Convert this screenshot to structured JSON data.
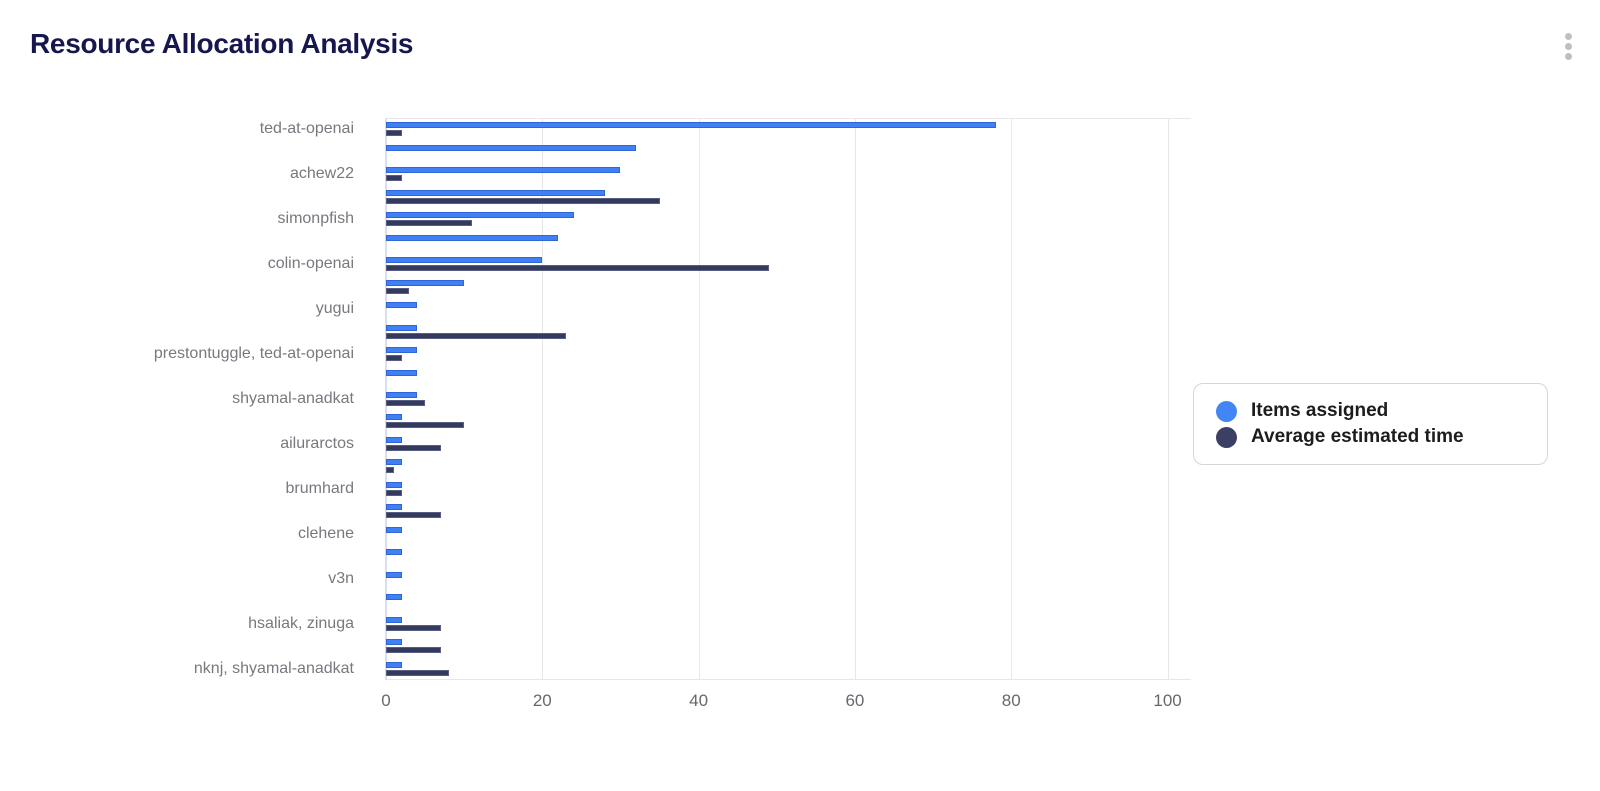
{
  "header": {
    "title": "Resource Allocation Analysis",
    "menu_icon": "kebab-vertical"
  },
  "colors": {
    "assigned_fill": "#4080f5",
    "assigned_border": "#2f65d6",
    "time_fill": "#333a5e",
    "time_border": "#585e83",
    "legend_assigned_dot": "#4286f5",
    "legend_time_dot": "#3a3f63",
    "title_text": "#17174f",
    "category_label": "#76797e",
    "tick_label": "#65686d",
    "gridline": "#e7e7e9",
    "axis_line": "#d9def2"
  },
  "legend": {
    "position": "right",
    "items": [
      {
        "label": "Items assigned",
        "color": "#4286f5"
      },
      {
        "label": "Average estimated time",
        "color": "#3a3f63"
      }
    ]
  },
  "chart_data": {
    "type": "bar",
    "orientation": "horizontal",
    "title": "Resource Allocation Analysis",
    "xlabel": "",
    "ylabel": "",
    "grid": true,
    "x_ticks": [
      0,
      20,
      40,
      60,
      80,
      100
    ],
    "xlim": [
      0,
      103
    ],
    "legend_position": "right",
    "series_names": [
      "Items assigned",
      "Average estimated time"
    ],
    "rows": [
      {
        "label": "ted-at-openai",
        "assigned": 78,
        "time": 2
      },
      {
        "label": "",
        "assigned": 32,
        "time": 0
      },
      {
        "label": "achew22",
        "assigned": 30,
        "time": 2
      },
      {
        "label": "",
        "assigned": 28,
        "time": 35
      },
      {
        "label": "simonpfish",
        "assigned": 24,
        "time": 11
      },
      {
        "label": "",
        "assigned": 22,
        "time": 0
      },
      {
        "label": "colin-openai",
        "assigned": 20,
        "time": 49
      },
      {
        "label": "",
        "assigned": 10,
        "time": 3
      },
      {
        "label": "yugui",
        "assigned": 4,
        "time": 0
      },
      {
        "label": "",
        "assigned": 4,
        "time": 23
      },
      {
        "label": "prestontuggle, ted-at-openai",
        "assigned": 4,
        "time": 2
      },
      {
        "label": "",
        "assigned": 4,
        "time": 0
      },
      {
        "label": "shyamal-anadkat",
        "assigned": 4,
        "time": 5
      },
      {
        "label": "",
        "assigned": 2,
        "time": 10
      },
      {
        "label": "ailurarctos",
        "assigned": 2,
        "time": 7
      },
      {
        "label": "",
        "assigned": 2,
        "time": 1
      },
      {
        "label": "brumhard",
        "assigned": 2,
        "time": 2
      },
      {
        "label": "",
        "assigned": 2,
        "time": 7
      },
      {
        "label": "clehene",
        "assigned": 2,
        "time": 0
      },
      {
        "label": "",
        "assigned": 2,
        "time": 0
      },
      {
        "label": "v3n",
        "assigned": 2,
        "time": 0
      },
      {
        "label": "",
        "assigned": 2,
        "time": 0
      },
      {
        "label": "hsaliak, zinuga",
        "assigned": 2,
        "time": 7
      },
      {
        "label": "",
        "assigned": 2,
        "time": 7
      },
      {
        "label": "nknj, shyamal-anadkat",
        "assigned": 2,
        "time": 8
      }
    ]
  }
}
